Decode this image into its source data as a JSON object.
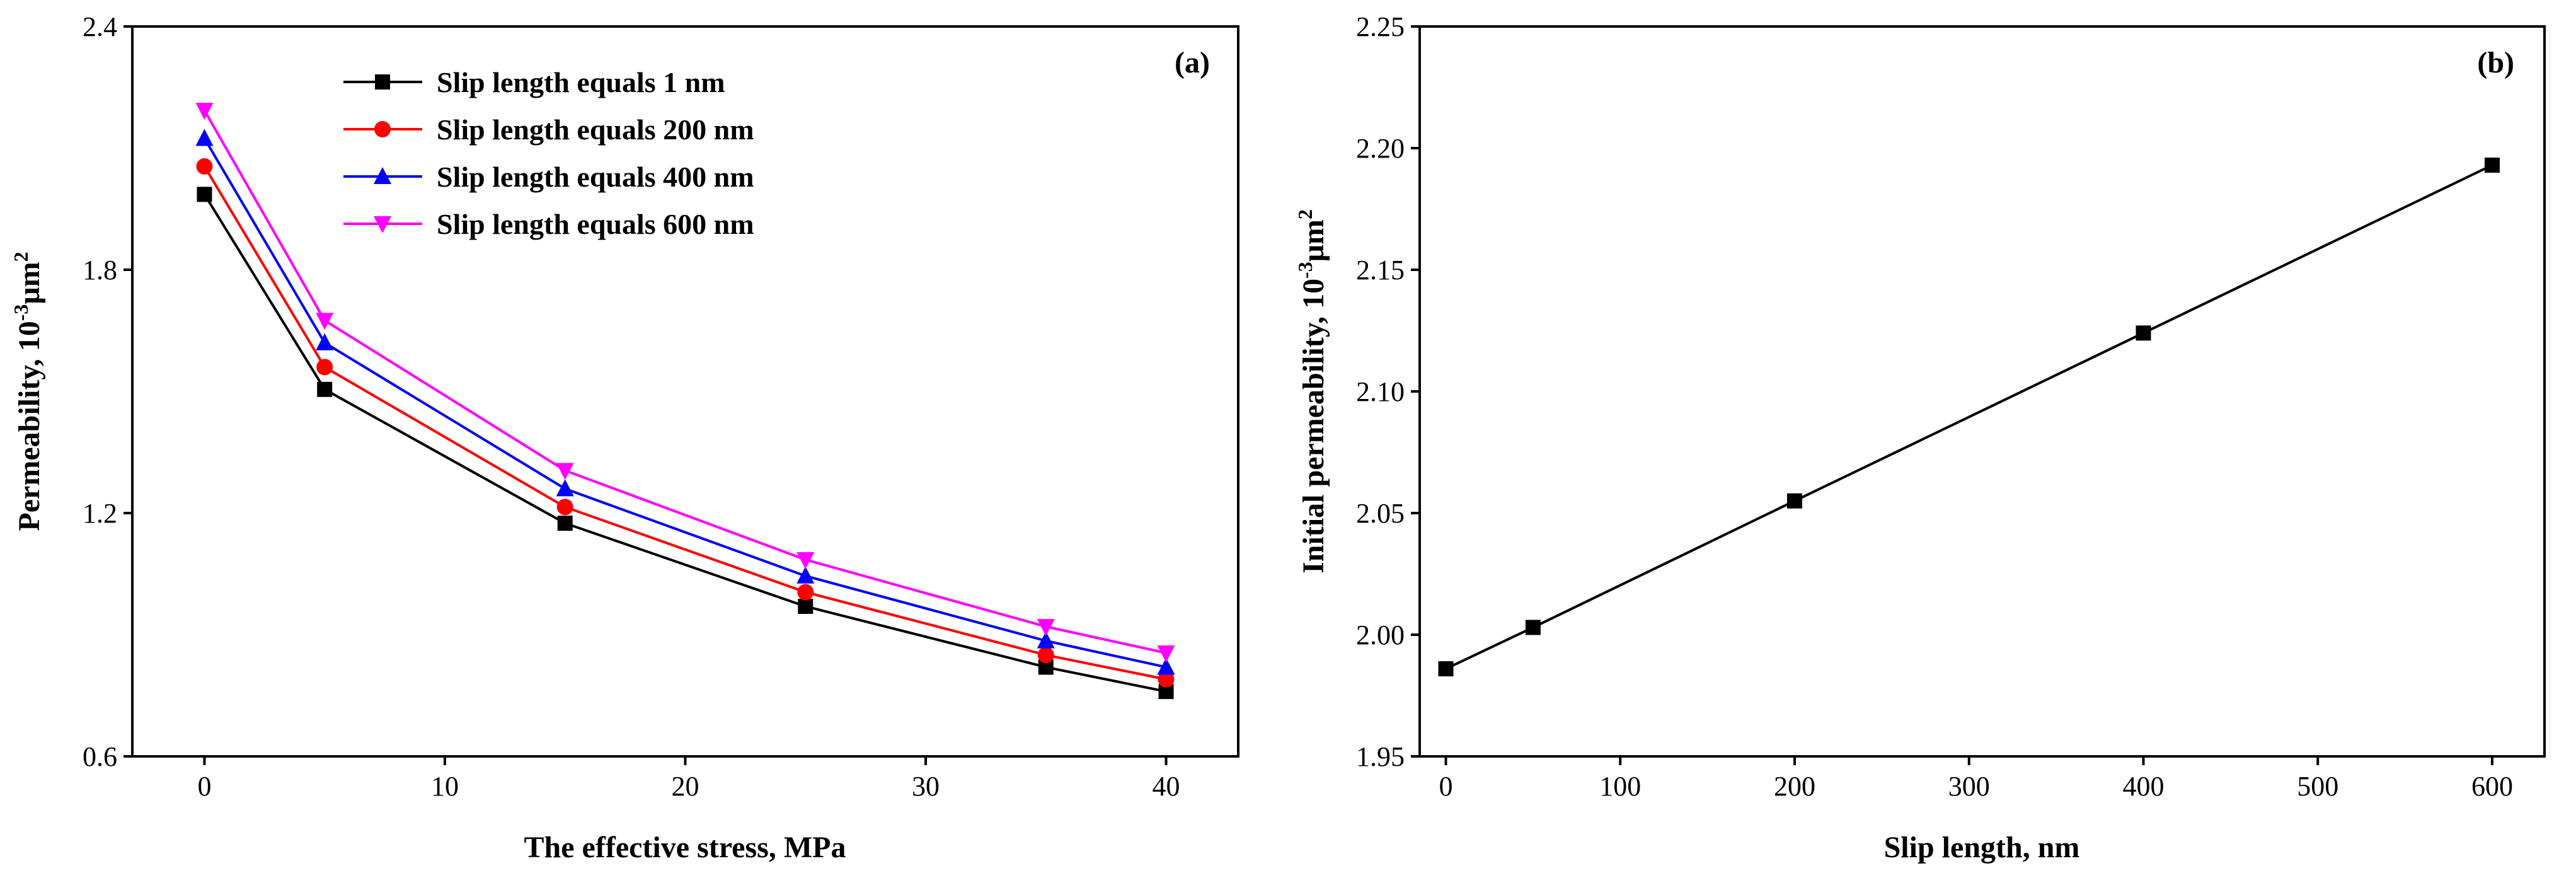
{
  "chart_data": [
    {
      "type": "line",
      "panel_label": "(a)",
      "xlabel": "The effective stress, MPa",
      "ylabel_main": "Permeability, 10",
      "ylabel_sup1": "-3",
      "ylabel_mid": "μm",
      "ylabel_sup2": "2",
      "xlim": [
        -3,
        43
      ],
      "ylim": [
        0.6,
        2.4
      ],
      "x_ticks": [
        0,
        10,
        20,
        30,
        40
      ],
      "y_ticks": [
        0.6,
        1.2,
        1.8,
        2.4
      ],
      "x_tick_labels": [
        "0",
        "10",
        "20",
        "30",
        "40"
      ],
      "y_tick_labels": [
        "0.6",
        "1.2",
        "1.8",
        "2.4"
      ],
      "legend_position": "top-left",
      "x": [
        0,
        5,
        15,
        25,
        35,
        40
      ],
      "series": [
        {
          "name": "Slip length equals 1 nm",
          "color": "#000000",
          "marker": "square",
          "values": [
            1.986,
            1.505,
            1.175,
            0.97,
            0.82,
            0.76
          ]
        },
        {
          "name": "Slip length equals 200 nm",
          "color": "#ff0000",
          "marker": "circle",
          "values": [
            2.055,
            1.56,
            1.215,
            1.005,
            0.85,
            0.79
          ]
        },
        {
          "name": "Slip length equals 400 nm",
          "color": "#0000ff",
          "marker": "triangle-up",
          "values": [
            2.124,
            1.62,
            1.26,
            1.045,
            0.885,
            0.82
          ]
        },
        {
          "name": "Slip length equals 600 nm",
          "color": "#ff00ff",
          "marker": "triangle-down",
          "values": [
            2.193,
            1.675,
            1.305,
            1.085,
            0.92,
            0.855
          ]
        }
      ]
    },
    {
      "type": "line",
      "panel_label": "(b)",
      "xlabel": "Slip length, nm",
      "ylabel_main": "Initial permeability, 10",
      "ylabel_sup1": "-3",
      "ylabel_mid": "μm",
      "ylabel_sup2": "2",
      "xlim": [
        -15,
        630
      ],
      "ylim": [
        1.95,
        2.25
      ],
      "x_ticks": [
        0,
        100,
        200,
        300,
        400,
        500,
        600
      ],
      "y_ticks": [
        1.95,
        2.0,
        2.05,
        2.1,
        2.15,
        2.2,
        2.25
      ],
      "x_tick_labels": [
        "0",
        "100",
        "200",
        "300",
        "400",
        "500",
        "600"
      ],
      "y_tick_labels": [
        "1.95",
        "2.00",
        "2.05",
        "2.10",
        "2.15",
        "2.20",
        "2.25"
      ],
      "x": [
        0,
        50,
        200,
        400,
        600
      ],
      "series": [
        {
          "name": "Initial permeability",
          "color": "#000000",
          "marker": "square",
          "values": [
            1.986,
            2.003,
            2.055,
            2.124,
            2.193
          ]
        }
      ]
    }
  ]
}
